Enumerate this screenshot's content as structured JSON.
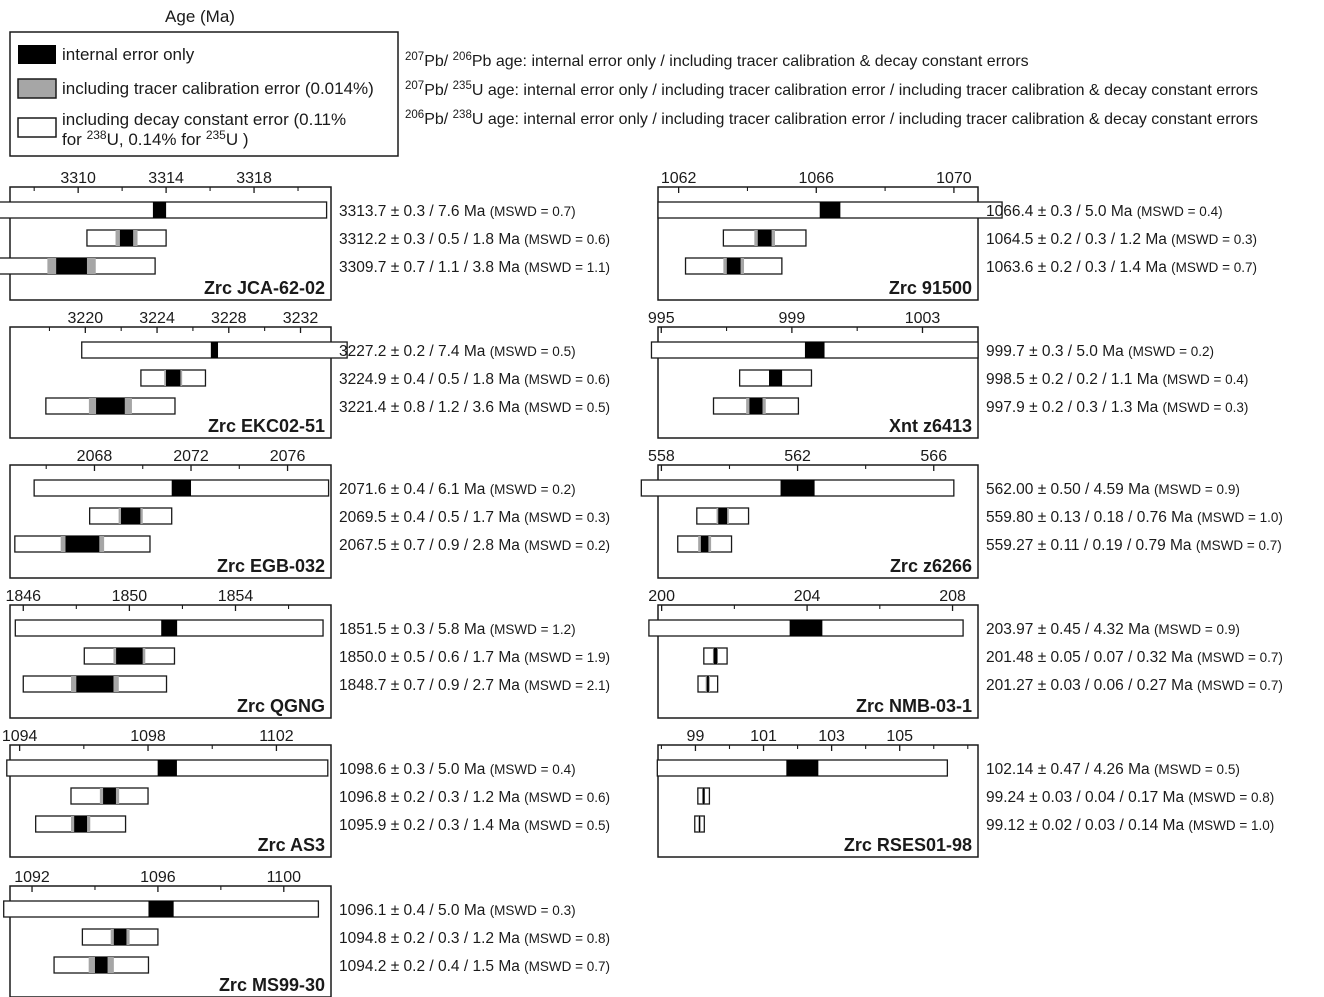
{
  "title": "Age (Ma)",
  "legend": {
    "entries": [
      {
        "label": "internal error only",
        "swatch": "black"
      },
      {
        "label": "including tracer calibration error (0.014%)",
        "swatch": "gray"
      },
      {
        "label_line1": "including decay constant error (0.11%",
        "label_line2_pre": "for ",
        "label_line2_sup1": "238",
        "label_line2_mid": "U, 0.14% for ",
        "label_line2_sup2": "235",
        "label_line2_post": "U )",
        "swatch": "white"
      }
    ]
  },
  "notes": [
    {
      "sup1": "207",
      "t1": "Pb/ ",
      "sup2": "206",
      "t2": "Pb age: internal error only / including tracer calibration & decay constant errors"
    },
    {
      "sup1": "207",
      "t1": "Pb/ ",
      "sup2": "235",
      "t2": "U age: internal error only / including tracer calibration error / including tracer calibration & decay constant errors"
    },
    {
      "sup1": "206",
      "t1": "Pb/ ",
      "sup2": "238",
      "t2": "U age: internal error only / including tracer calibration error / including tracer calibration & decay constant errors"
    }
  ],
  "colors": {
    "internal": "#000000",
    "tracer": "#a6a6a6",
    "decay": "#ffffff",
    "frame": "#1a1a1a"
  },
  "chart_data": [
    {
      "type": "bar",
      "sample": "Zrc JCA-62-02",
      "xlim": [
        3306.9,
        3321.5
      ],
      "ticks": [
        3310,
        3314,
        3318
      ],
      "minor_ticks": [
        3308,
        3312,
        3316,
        3320
      ],
      "ages": [
        {
          "label_main": "3313.7 ± 0.3 / 7.6 Ma",
          "mswd": "(MSWD = 0.7)",
          "value": 3313.7,
          "err_int": 0.3,
          "err_decay": 7.6
        },
        {
          "label_main": "3312.2 ± 0.3 / 0.5 / 1.8 Ma",
          "mswd": "(MSWD = 0.6)",
          "value": 3312.2,
          "err_int": 0.3,
          "err_tracer": 0.5,
          "err_decay": 1.8
        },
        {
          "label_main": "3309.7 ± 0.7 / 1.1 / 3.8 Ma",
          "mswd": "(MSWD = 1.1)",
          "value": 3309.7,
          "err_int": 0.7,
          "err_tracer": 1.1,
          "err_decay": 3.8
        }
      ]
    },
    {
      "type": "bar",
      "sample": "Zrc 91500",
      "xlim": [
        1061.4,
        1070.7
      ],
      "ticks": [
        1062,
        1066,
        1070
      ],
      "minor_ticks": [
        1064,
        1068
      ],
      "ages": [
        {
          "label_main": "1066.4 ± 0.3 / 5.0 Ma",
          "mswd": "(MSWD = 0.4)",
          "value": 1066.4,
          "err_int": 0.3,
          "err_decay": 5.0
        },
        {
          "label_main": "1064.5 ± 0.2 / 0.3 / 1.2 Ma",
          "mswd": "(MSWD = 0.3)",
          "value": 1064.5,
          "err_int": 0.2,
          "err_tracer": 0.3,
          "err_decay": 1.2
        },
        {
          "label_main": "1063.6 ± 0.2 / 0.3 / 1.4 Ma",
          "mswd": "(MSWD = 0.7)",
          "value": 1063.6,
          "err_int": 0.2,
          "err_tracer": 0.3,
          "err_decay": 1.4
        }
      ]
    },
    {
      "type": "bar",
      "sample": "Zrc EKC02-51",
      "xlim": [
        3215.8,
        3233.7
      ],
      "ticks": [
        3220,
        3224,
        3228,
        3232
      ],
      "minor_ticks": [
        3218,
        3222,
        3226,
        3230
      ],
      "ages": [
        {
          "label_main": "3227.2 ± 0.2 / 7.4 Ma",
          "mswd": "(MSWD = 0.5)",
          "value": 3227.2,
          "err_int": 0.2,
          "err_decay": 7.4
        },
        {
          "label_main": "3224.9 ± 0.4 / 0.5 / 1.8 Ma",
          "mswd": "(MSWD = 0.6)",
          "value": 3224.9,
          "err_int": 0.4,
          "err_tracer": 0.5,
          "err_decay": 1.8
        },
        {
          "label_main": "3221.4 ± 0.8 / 1.2 / 3.6 Ma",
          "mswd": "(MSWD = 0.5)",
          "value": 3221.4,
          "err_int": 0.8,
          "err_tracer": 1.2,
          "err_decay": 3.6
        }
      ]
    },
    {
      "type": "bar",
      "sample": "Xnt z6413",
      "xlim": [
        994.9,
        1004.7
      ],
      "ticks": [
        995,
        999,
        1003
      ],
      "minor_ticks": [
        997,
        1001
      ],
      "ages": [
        {
          "label_main": "999.7 ± 0.3 / 5.0 Ma",
          "mswd": "(MSWD = 0.2)",
          "value": 999.7,
          "err_int": 0.3,
          "err_decay": 5.0
        },
        {
          "label_main": "998.5 ± 0.2 / 0.2 / 1.1 Ma",
          "mswd": "(MSWD = 0.4)",
          "value": 998.5,
          "err_int": 0.2,
          "err_tracer": 0.2,
          "err_decay": 1.1
        },
        {
          "label_main": "997.9 ± 0.2  / 0.3 / 1.3 Ma",
          "mswd": "(MSWD = 0.3)",
          "value": 997.9,
          "err_int": 0.2,
          "err_tracer": 0.3,
          "err_decay": 1.3
        }
      ]
    },
    {
      "type": "bar",
      "sample": "Zrc EGB-032",
      "xlim": [
        2064.5,
        2077.8
      ],
      "ticks": [
        2068,
        2072,
        2076
      ],
      "minor_ticks": [
        2066,
        2070,
        2074
      ],
      "ages": [
        {
          "label_main": "2071.6 ± 0.4 / 6.1 Ma",
          "mswd": "(MSWD = 0.2)",
          "value": 2071.6,
          "err_int": 0.4,
          "err_decay": 6.1
        },
        {
          "label_main": "2069.5 ± 0.4 / 0.5 / 1.7 Ma",
          "mswd": "(MSWD = 0.3)",
          "value": 2069.5,
          "err_int": 0.4,
          "err_tracer": 0.5,
          "err_decay": 1.7
        },
        {
          "label_main": "2067.5 ± 0.7 / 0.9 / 2.8 Ma",
          "mswd": "(MSWD = 0.2)",
          "value": 2067.5,
          "err_int": 0.7,
          "err_tracer": 0.9,
          "err_decay": 2.8
        }
      ]
    },
    {
      "type": "bar",
      "sample": "Zrc z6266",
      "xlim": [
        557.9,
        567.3
      ],
      "ticks": [
        558,
        562,
        566
      ],
      "minor_ticks": [
        560,
        564
      ],
      "ages": [
        {
          "label_main": "562.00 ± 0.50 / 4.59 Ma",
          "mswd": "(MSWD = 0.9)",
          "value": 562.0,
          "err_int": 0.5,
          "err_decay": 4.59
        },
        {
          "label_main": "559.80 ± 0.13 / 0.18 / 0.76 Ma",
          "mswd": "(MSWD = 1.0)",
          "value": 559.8,
          "err_int": 0.13,
          "err_tracer": 0.18,
          "err_decay": 0.76
        },
        {
          "label_main": "559.27 ± 0.11 / 0.19 / 0.79 Ma",
          "mswd": "(MSWD = 0.7)",
          "value": 559.27,
          "err_int": 0.11,
          "err_tracer": 0.19,
          "err_decay": 0.79
        }
      ]
    },
    {
      "type": "bar",
      "sample": "Zrc QGNG",
      "xlim": [
        1845.5,
        1857.6
      ],
      "ticks": [
        1846,
        1850,
        1854
      ],
      "minor_ticks": [
        1848,
        1852,
        1856
      ],
      "ages": [
        {
          "label_main": "1851.5 ± 0.3 / 5.8 Ma",
          "mswd": "(MSWD = 1.2)",
          "value": 1851.5,
          "err_int": 0.3,
          "err_decay": 5.8
        },
        {
          "label_main": "1850.0 ± 0.5 / 0.6 / 1.7 Ma",
          "mswd": "(MSWD = 1.9)",
          "value": 1850.0,
          "err_int": 0.5,
          "err_tracer": 0.6,
          "err_decay": 1.7
        },
        {
          "label_main": "1848.7 ± 0.7 / 0.9 / 2.7 Ma",
          "mswd": "(MSWD = 2.1)",
          "value": 1848.7,
          "err_int": 0.7,
          "err_tracer": 0.9,
          "err_decay": 2.7
        }
      ]
    },
    {
      "type": "bar",
      "sample": "Zrc NMB-03-1",
      "xlim": [
        199.9,
        208.7
      ],
      "ticks": [
        200,
        204,
        208
      ],
      "minor_ticks": [
        202,
        206
      ],
      "ages": [
        {
          "label_main": "203.97 ± 0.45 / 4.32 Ma",
          "mswd": "(MSWD = 0.9)",
          "value": 203.97,
          "err_int": 0.45,
          "err_decay": 4.32
        },
        {
          "label_main": "201.48 ± 0.05 / 0.07 / 0.32 Ma",
          "mswd": "(MSWD = 0.7)",
          "value": 201.48,
          "err_int": 0.05,
          "err_tracer": 0.07,
          "err_decay": 0.32
        },
        {
          "label_main": "201.27 ± 0.03 / 0.06 / 0.27 Ma",
          "mswd": "(MSWD = 0.7)",
          "value": 201.27,
          "err_int": 0.03,
          "err_tracer": 0.06,
          "err_decay": 0.27
        }
      ]
    },
    {
      "type": "bar",
      "sample": "Zrc AS3",
      "xlim": [
        1093.7,
        1103.7
      ],
      "ticks": [
        1094,
        1098,
        1102
      ],
      "minor_ticks": [
        1096,
        1100
      ],
      "ages": [
        {
          "label_main": "1098.6 ± 0.3 / 5.0 Ma",
          "mswd": "(MSWD = 0.4)",
          "value": 1098.6,
          "err_int": 0.3,
          "err_decay": 5.0
        },
        {
          "label_main": "1096.8 ± 0.2 / 0.3 / 1.2 Ma",
          "mswd": "(MSWD = 0.6)",
          "value": 1096.8,
          "err_int": 0.2,
          "err_tracer": 0.3,
          "err_decay": 1.2
        },
        {
          "label_main": "1095.9 ± 0.2 / 0.3 / 1.4 Ma",
          "mswd": "(MSWD = 0.5)",
          "value": 1095.9,
          "err_int": 0.2,
          "err_tracer": 0.3,
          "err_decay": 1.4
        }
      ]
    },
    {
      "type": "bar",
      "sample": "Zrc RSES01-98",
      "xlim": [
        97.9,
        107.3
      ],
      "ticks": [
        99,
        101,
        103,
        105
      ],
      "minor_ticks": [
        98,
        100,
        102,
        104,
        106,
        107
      ],
      "ages": [
        {
          "label_main": "102.14 ± 0.47 / 4.26 Ma",
          "mswd": "(MSWD = 0.5)",
          "value": 102.14,
          "err_int": 0.47,
          "err_decay": 4.26
        },
        {
          "label_main": "99.24 ± 0.03 / 0.04 / 0.17 Ma",
          "mswd": "(MSWD = 0.8)",
          "value": 99.24,
          "err_int": 0.03,
          "err_tracer": 0.04,
          "err_decay": 0.17
        },
        {
          "label_main": "99.12 ± 0.02 / 0.03 / 0.14 Ma",
          "mswd": "(MSWD = 1.0)",
          "value": 99.12,
          "err_int": 0.02,
          "err_tracer": 0.03,
          "err_decay": 0.14
        }
      ]
    },
    {
      "type": "bar",
      "sample": "Zrc MS99-30",
      "xlim": [
        1091.3,
        1101.5
      ],
      "ticks": [
        1092,
        1096,
        1100
      ],
      "minor_ticks": [
        1094,
        1098
      ],
      "ages": [
        {
          "label_main": "1096.1 ± 0.4 / 5.0 Ma",
          "mswd": "(MSWD = 0.3)",
          "value": 1096.1,
          "err_int": 0.4,
          "err_decay": 5.0
        },
        {
          "label_main": "1094.8 ± 0.2 / 0.3 / 1.2 Ma",
          "mswd": "(MSWD = 0.8)",
          "value": 1094.8,
          "err_int": 0.2,
          "err_tracer": 0.3,
          "err_decay": 1.2
        },
        {
          "label_main": "1094.2 ± 0.2 / 0.4 / 1.5 Ma",
          "mswd": "(MSWD = 0.7)",
          "value": 1094.2,
          "err_int": 0.2,
          "err_tracer": 0.4,
          "err_decay": 1.5
        }
      ]
    }
  ]
}
